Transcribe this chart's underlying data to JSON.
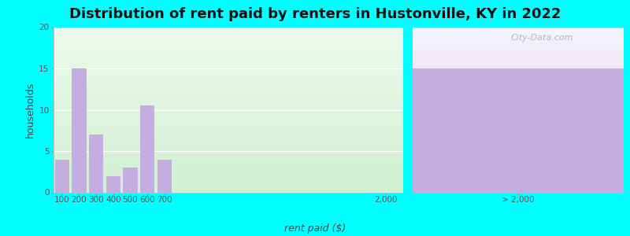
{
  "title": "Distribution of rent paid by renters in Hustonville, KY in 2022",
  "xlabel": "rent paid ($)",
  "ylabel": "households",
  "bar_categories": [
    "100",
    "200",
    "300",
    "400",
    "500",
    "600",
    "700"
  ],
  "bar_values": [
    4,
    15,
    7,
    2,
    3,
    10.5,
    4
  ],
  "bar_color": "#c4aee0",
  "big_bar_label": "> 2,000",
  "big_bar_value": 15,
  "big_bar_color": "#c4aee0",
  "ylim": [
    0,
    20
  ],
  "yticks": [
    0,
    5,
    10,
    15,
    20
  ],
  "background_color": "#00ffff",
  "plot_bg_left_top": "#e8f5e8",
  "plot_bg_left_bottom": "#d8f0d0",
  "plot_bg_right_top": "#f0f0f8",
  "plot_bg_right_bottom": "#e8e0f0",
  "title_fontsize": 13,
  "axis_label_fontsize": 9,
  "tick_fontsize": 7.5,
  "watermark": "City-Data.com"
}
